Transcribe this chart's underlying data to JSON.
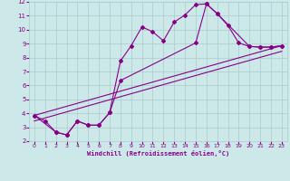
{
  "background_color": "#cce8e8",
  "grid_color": "#aacccc",
  "line_color": "#880088",
  "marker": "D",
  "marker_size": 2.0,
  "line_width": 0.8,
  "xlabel": "Windchill (Refroidissement éolien,°C)",
  "xlim": [
    -0.5,
    23.5
  ],
  "ylim": [
    2,
    12
  ],
  "yticks": [
    2,
    3,
    4,
    5,
    6,
    7,
    8,
    9,
    10,
    11,
    12
  ],
  "xticks": [
    0,
    1,
    2,
    3,
    4,
    5,
    6,
    7,
    8,
    9,
    10,
    11,
    12,
    13,
    14,
    15,
    16,
    17,
    18,
    19,
    20,
    21,
    22,
    23
  ],
  "series1_x": [
    0,
    1,
    2,
    3,
    4,
    5,
    6,
    7,
    8,
    9,
    10,
    11,
    12,
    13,
    14,
    15,
    16,
    17,
    18,
    19,
    20,
    21,
    22,
    23
  ],
  "series1_y": [
    3.85,
    3.45,
    2.65,
    2.45,
    3.45,
    3.15,
    3.15,
    4.05,
    7.75,
    8.85,
    10.2,
    9.85,
    9.2,
    10.55,
    11.05,
    11.8,
    11.85,
    11.15,
    10.3,
    9.05,
    8.8,
    8.75,
    8.75,
    8.85
  ],
  "series2_x": [
    0,
    2,
    3,
    4,
    5,
    6,
    7,
    8,
    15,
    16,
    17,
    20,
    21,
    22,
    23
  ],
  "series2_y": [
    3.85,
    2.65,
    2.45,
    3.45,
    3.15,
    3.15,
    4.05,
    6.35,
    9.05,
    11.85,
    11.15,
    8.8,
    8.75,
    8.75,
    8.85
  ],
  "series3_x": [
    0,
    23
  ],
  "series3_y": [
    3.85,
    8.85
  ],
  "series4_x": [
    0,
    23
  ],
  "series4_y": [
    3.45,
    8.45
  ]
}
